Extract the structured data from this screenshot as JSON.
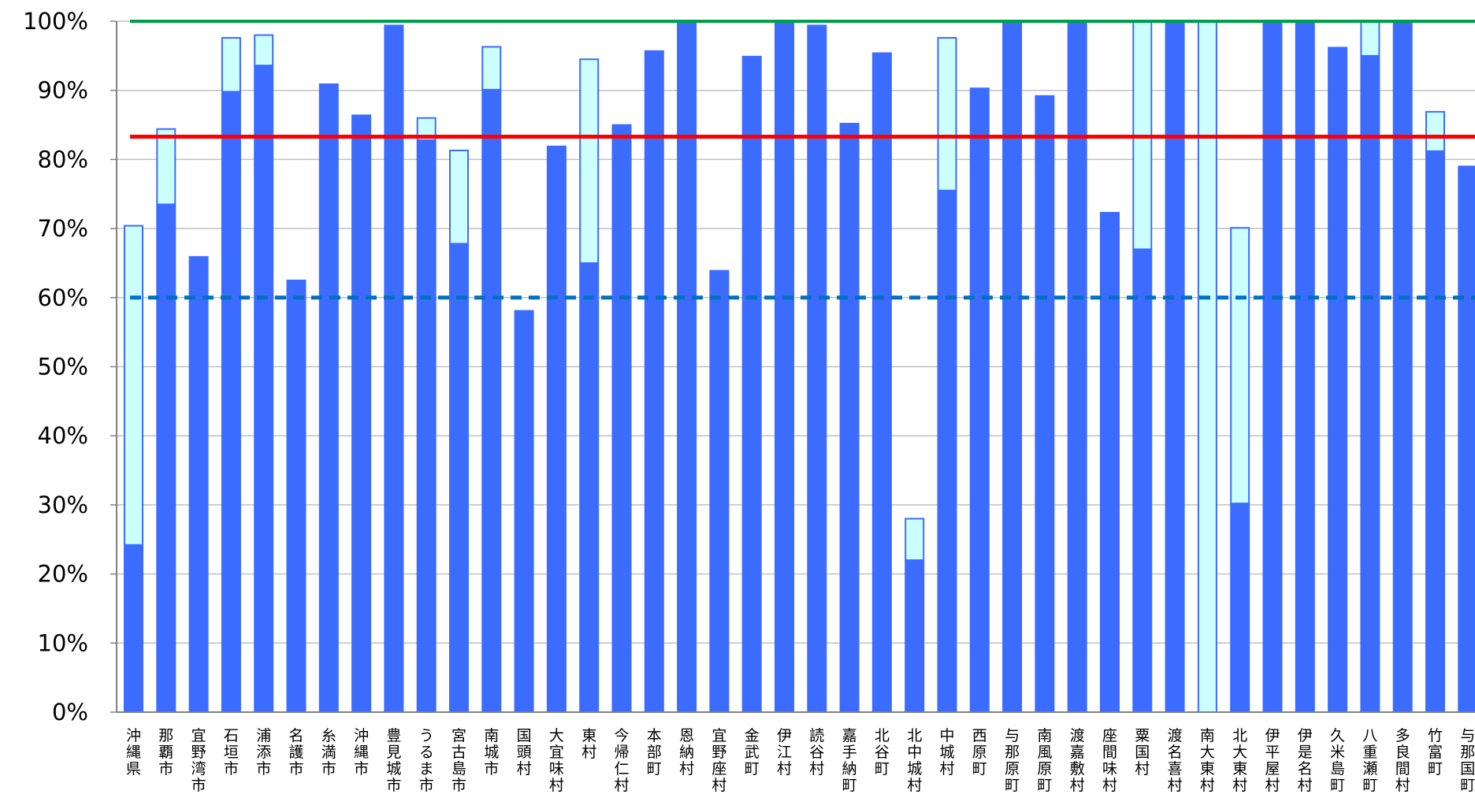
{
  "chart_data": {
    "type": "bar",
    "ylim": [
      0,
      100
    ],
    "ytick_labels": [
      "0%",
      "10%",
      "20%",
      "30%",
      "40%",
      "50%",
      "60%",
      "70%",
      "80%",
      "90%",
      "100%"
    ],
    "grid": "horizontal",
    "colors": {
      "base": "#3c6cff",
      "stack": "#ccffff",
      "stack_border": "#3c6cff",
      "target_line": "#00a04a",
      "average_line": "#ff0000",
      "threshold_line": "#0070c0",
      "grid": "#c0c0c0"
    },
    "categories": [
      "沖縄県",
      "那覇市",
      "宜野湾市",
      "石垣市",
      "浦添市",
      "名護市",
      "糸満市",
      "沖縄市",
      "豊見城市",
      "うるま市",
      "宮古島市",
      "南城市",
      "国頭村",
      "大宜味村",
      "東村",
      "今帰仁村",
      "本部町",
      "恩納村",
      "宜野座村",
      "金武町",
      "伊江村",
      "読谷村",
      "嘉手納町",
      "北谷町",
      "北中城村",
      "中城村",
      "西原町",
      "与那原町",
      "南風原町",
      "渡嘉敷村",
      "座間味村",
      "粟国村",
      "渡名喜村",
      "南大東村",
      "北大東村",
      "伊平屋村",
      "伊是名村",
      "久米島町",
      "八重瀬町",
      "多良間村",
      "竹富町",
      "与那国町"
    ],
    "series": [
      {
        "values": [
          24.2,
          73.5,
          66,
          89.8,
          93.6,
          62.6,
          91,
          86.5,
          99.5,
          82.8,
          67.8,
          90.1,
          58.2,
          82,
          65,
          85.1,
          95.8,
          100,
          64,
          95,
          100,
          99.5,
          85.3,
          95.5,
          22,
          75.5,
          90.4,
          100,
          89.3,
          100,
          72.4,
          67,
          100,
          0,
          30.2,
          100,
          100,
          96.3,
          95,
          100,
          81.2,
          79.1
        ]
      },
      {
        "values": [
          46.2,
          10.9,
          0,
          7.8,
          4.4,
          0,
          0,
          0,
          0,
          3.2,
          13.5,
          6.2,
          0,
          0,
          29.5,
          0,
          0,
          0,
          0,
          0,
          0,
          0,
          0,
          0,
          6,
          22.1,
          0,
          0,
          0,
          0,
          0,
          33,
          0,
          100,
          39.9,
          0,
          0,
          0,
          5,
          0,
          5.7,
          0
        ]
      }
    ],
    "reference_lines": [
      {
        "value": 100,
        "style": "solid"
      },
      {
        "value": 83.3,
        "style": "solid"
      },
      {
        "value": 60,
        "style": "dashed"
      }
    ]
  }
}
